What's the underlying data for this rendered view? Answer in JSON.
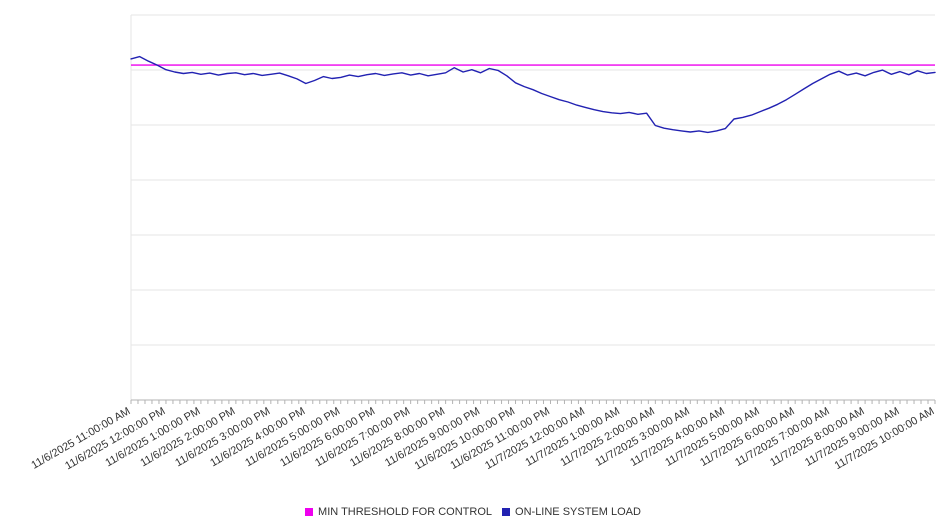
{
  "page": {
    "background_color": "#ffffff",
    "title": ""
  },
  "chart_data": {
    "type": "line",
    "title": "",
    "xlabel": "",
    "ylabel": "",
    "grid": "horizontal",
    "gridline_count": 8,
    "legend_position": "bottom-center",
    "ylim": [
      0,
      100
    ],
    "y_tick_labels": [],
    "y_axis_labeled": false,
    "minor_tick_minutes": 12,
    "label_rotation_deg": -30,
    "x_labels": [
      "11/6/2025 11:00:00 AM",
      "11/6/2025 12:00:00 PM",
      "11/6/2025 1:00:00 PM",
      "11/6/2025 2:00:00 PM",
      "11/6/2025 3:00:00 PM",
      "11/6/2025 4:00:00 PM",
      "11/6/2025 5:00:00 PM",
      "11/6/2025 6:00:00 PM",
      "11/6/2025 7:00:00 PM",
      "11/6/2025 8:00:00 PM",
      "11/6/2025 9:00:00 PM",
      "11/6/2025 10:00:00 PM",
      "11/6/2025 11:00:00 PM",
      "11/7/2025 12:00:00 AM",
      "11/7/2025 1:00:00 AM",
      "11/7/2025 2:00:00 AM",
      "11/7/2025 3:00:00 AM",
      "11/7/2025 4:00:00 AM",
      "11/7/2025 5:00:00 AM",
      "11/7/2025 6:00:00 AM",
      "11/7/2025 7:00:00 AM",
      "11/7/2025 8:00:00 AM",
      "11/7/2025 9:00:00 AM",
      "11/7/2025 10:00:00 AM"
    ],
    "series": [
      {
        "name": "MIN THRESHOLD FOR CONTROL",
        "color": "#ee00ee",
        "style": "constant-horizontal-line",
        "value": 87
      },
      {
        "name": "ON-LINE SYSTEM LOAD",
        "color": "#2222b2",
        "style": "line",
        "x_hours": [
          0,
          0.25,
          0.5,
          0.75,
          1,
          1.25,
          1.5,
          1.75,
          2,
          2.25,
          2.5,
          2.75,
          3,
          3.25,
          3.5,
          3.75,
          4,
          4.25,
          4.5,
          4.75,
          5,
          5.25,
          5.5,
          5.75,
          6,
          6.25,
          6.5,
          6.75,
          7,
          7.25,
          7.5,
          7.75,
          8,
          8.25,
          8.5,
          8.75,
          9,
          9.25,
          9.5,
          9.75,
          10,
          10.25,
          10.5,
          10.75,
          11,
          11.25,
          11.5,
          11.75,
          12,
          12.25,
          12.5,
          12.75,
          13,
          13.25,
          13.5,
          13.75,
          14,
          14.25,
          14.5,
          14.75,
          15,
          15.25,
          15.5,
          15.75,
          16,
          16.25,
          16.5,
          16.75,
          17,
          17.25,
          17.5,
          17.75,
          18,
          18.25,
          18.5,
          18.75,
          19,
          19.25,
          19.5,
          19.75,
          20,
          20.25,
          20.5,
          20.75,
          21,
          21.25,
          21.5,
          21.75,
          22,
          22.25,
          22.5,
          22.75,
          23
        ],
        "values": [
          88.6,
          89.2,
          88.0,
          87.0,
          85.8,
          85.2,
          84.8,
          85.1,
          84.6,
          84.9,
          84.4,
          84.8,
          85.0,
          84.5,
          84.8,
          84.3,
          84.6,
          84.9,
          84.2,
          83.4,
          82.2,
          83.0,
          84.0,
          83.5,
          83.8,
          84.4,
          84.0,
          84.5,
          84.8,
          84.3,
          84.7,
          85.0,
          84.4,
          84.8,
          84.2,
          84.6,
          85.0,
          86.3,
          85.2,
          85.8,
          85.0,
          86.1,
          85.6,
          84.2,
          82.4,
          81.4,
          80.6,
          79.6,
          78.8,
          78.0,
          77.4,
          76.6,
          76.0,
          75.4,
          74.9,
          74.6,
          74.4,
          74.7,
          74.2,
          74.5,
          71.3,
          70.6,
          70.2,
          69.9,
          69.6,
          69.9,
          69.5,
          69.9,
          70.5,
          73.0,
          73.4,
          74.0,
          74.9,
          75.8,
          76.8,
          78.0,
          79.4,
          80.8,
          82.2,
          83.4,
          84.6,
          85.4,
          84.4,
          84.9,
          84.2,
          85.1,
          85.7,
          84.6,
          85.3,
          84.5,
          85.5,
          84.8,
          85.1
        ]
      }
    ]
  }
}
